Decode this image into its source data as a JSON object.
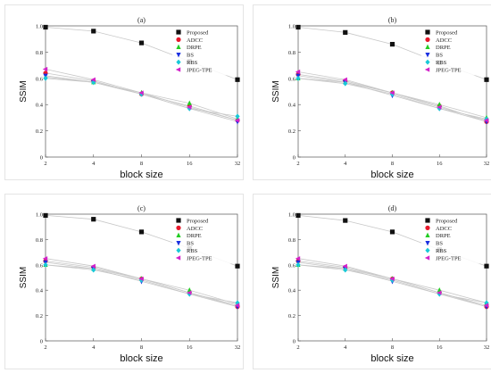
{
  "colors": {
    "Proposed": "#111111",
    "ADCC": "#e8192c",
    "DRPE": "#22cc22",
    "BS": "#1a2fe0",
    "RBS": "#18c8d8",
    "JPEG-TPE": "#d321c9",
    "axis": "#555555",
    "frame": "#e4e4e4"
  },
  "chart_data": [
    {
      "type": "line",
      "title": "(a)",
      "xlabel": "block size",
      "ylabel": "SSIM",
      "x": [
        2,
        4,
        8,
        16,
        32
      ],
      "x_scale": "log2",
      "xticks": [
        "2",
        "4",
        "8",
        "16",
        "32"
      ],
      "ylim": [
        0,
        1.0
      ],
      "yticks": [
        "0",
        "0.2",
        "0.4",
        "0.6",
        "0.8",
        "1.0"
      ],
      "grid": false,
      "legend": "top-right",
      "series": [
        {
          "name": "Proposed",
          "marker": "square",
          "values": [
            0.99,
            0.96,
            0.87,
            0.73,
            0.59
          ]
        },
        {
          "name": "ADCC",
          "marker": "circle",
          "values": [
            0.64,
            0.58,
            0.48,
            0.39,
            0.28
          ]
        },
        {
          "name": "DRPE",
          "marker": "triangle-up",
          "values": [
            0.61,
            0.57,
            0.49,
            0.41,
            0.29
          ]
        },
        {
          "name": "BS",
          "marker": "triangle-down",
          "values": [
            0.62,
            0.57,
            0.48,
            0.37,
            0.27
          ]
        },
        {
          "name": "RBS",
          "marker": "diamond",
          "values": [
            0.6,
            0.57,
            0.48,
            0.37,
            0.31
          ]
        },
        {
          "name": "JPEG-TPE",
          "marker": "triangle-left",
          "values": [
            0.67,
            0.59,
            0.49,
            0.38,
            0.28
          ]
        }
      ]
    },
    {
      "type": "line",
      "title": "(b)",
      "xlabel": "block size",
      "ylabel": "SSIM",
      "x": [
        2,
        4,
        8,
        16,
        32
      ],
      "x_scale": "log2",
      "xticks": [
        "2",
        "4",
        "8",
        "16",
        "32"
      ],
      "ylim": [
        0,
        1.0
      ],
      "yticks": [
        "0",
        "0.2",
        "0.4",
        "0.6",
        "0.8",
        "1.0"
      ],
      "grid": false,
      "legend": "top-right",
      "series": [
        {
          "name": "Proposed",
          "marker": "square",
          "values": [
            0.99,
            0.95,
            0.86,
            0.72,
            0.59
          ]
        },
        {
          "name": "ADCC",
          "marker": "circle",
          "values": [
            0.63,
            0.58,
            0.49,
            0.39,
            0.27
          ]
        },
        {
          "name": "DRPE",
          "marker": "triangle-up",
          "values": [
            0.6,
            0.57,
            0.49,
            0.4,
            0.3
          ]
        },
        {
          "name": "BS",
          "marker": "triangle-down",
          "values": [
            0.62,
            0.57,
            0.47,
            0.37,
            0.27
          ]
        },
        {
          "name": "RBS",
          "marker": "diamond",
          "values": [
            0.6,
            0.56,
            0.48,
            0.37,
            0.29
          ]
        },
        {
          "name": "JPEG-TPE",
          "marker": "triangle-left",
          "values": [
            0.65,
            0.59,
            0.49,
            0.38,
            0.28
          ]
        }
      ]
    },
    {
      "type": "line",
      "title": "(c)",
      "xlabel": "block size",
      "ylabel": "SSIM",
      "x": [
        2,
        4,
        8,
        16,
        32
      ],
      "x_scale": "log2",
      "xticks": [
        "2",
        "4",
        "8",
        "16",
        "32"
      ],
      "ylim": [
        0,
        1.0
      ],
      "yticks": [
        "0",
        "0.2",
        "0.4",
        "0.6",
        "0.8",
        "1.0"
      ],
      "grid": false,
      "legend": "top-right",
      "series": [
        {
          "name": "Proposed",
          "marker": "square",
          "values": [
            0.99,
            0.96,
            0.86,
            0.73,
            0.59
          ]
        },
        {
          "name": "ADCC",
          "marker": "circle",
          "values": [
            0.63,
            0.58,
            0.49,
            0.38,
            0.27
          ]
        },
        {
          "name": "DRPE",
          "marker": "triangle-up",
          "values": [
            0.6,
            0.57,
            0.49,
            0.4,
            0.29
          ]
        },
        {
          "name": "BS",
          "marker": "triangle-down",
          "values": [
            0.62,
            0.57,
            0.47,
            0.37,
            0.27
          ]
        },
        {
          "name": "RBS",
          "marker": "diamond",
          "values": [
            0.6,
            0.56,
            0.48,
            0.37,
            0.3
          ]
        },
        {
          "name": "JPEG-TPE",
          "marker": "triangle-left",
          "values": [
            0.65,
            0.59,
            0.49,
            0.38,
            0.28
          ]
        }
      ]
    },
    {
      "type": "line",
      "title": "(d)",
      "xlabel": "block size",
      "ylabel": "SSIM",
      "x": [
        2,
        4,
        8,
        16,
        32
      ],
      "x_scale": "log2",
      "xticks": [
        "2",
        "4",
        "8",
        "16",
        "32"
      ],
      "ylim": [
        0,
        1.0
      ],
      "yticks": [
        "0",
        "0.2",
        "0.4",
        "0.6",
        "0.8",
        "1.0"
      ],
      "grid": false,
      "legend": "top-right",
      "series": [
        {
          "name": "Proposed",
          "marker": "square",
          "values": [
            0.99,
            0.95,
            0.86,
            0.72,
            0.59
          ]
        },
        {
          "name": "ADCC",
          "marker": "circle",
          "values": [
            0.63,
            0.58,
            0.49,
            0.38,
            0.27
          ]
        },
        {
          "name": "DRPE",
          "marker": "triangle-up",
          "values": [
            0.6,
            0.57,
            0.49,
            0.4,
            0.3
          ]
        },
        {
          "name": "BS",
          "marker": "triangle-down",
          "values": [
            0.62,
            0.57,
            0.47,
            0.37,
            0.27
          ]
        },
        {
          "name": "RBS",
          "marker": "diamond",
          "values": [
            0.6,
            0.56,
            0.48,
            0.37,
            0.3
          ]
        },
        {
          "name": "JPEG-TPE",
          "marker": "triangle-left",
          "values": [
            0.65,
            0.59,
            0.49,
            0.38,
            0.28
          ]
        }
      ]
    }
  ]
}
